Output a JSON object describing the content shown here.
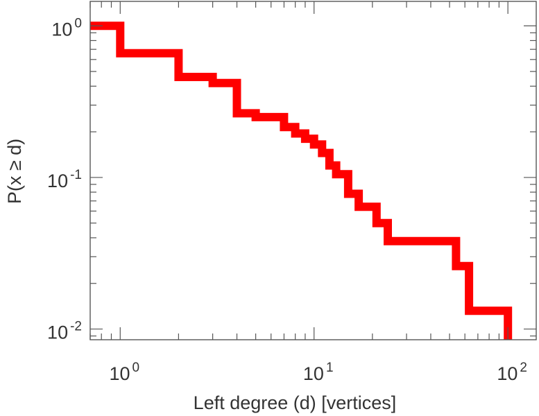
{
  "chart_data": {
    "type": "line",
    "style": "step",
    "xscale": "log",
    "yscale": "log",
    "xlabel": "Left degree (d) [vertices]",
    "ylabel": "P(x ≥ d)",
    "xlim": [
      0.7,
      140
    ],
    "ylim": [
      0.0085,
      1.45
    ],
    "xticks": [
      {
        "value": 1,
        "base": "10",
        "exp": "0"
      },
      {
        "value": 10,
        "base": "10",
        "exp": "1"
      },
      {
        "value": 100,
        "base": "10",
        "exp": "2"
      }
    ],
    "yticks": [
      {
        "value": 1,
        "base": "10",
        "exp": "0"
      },
      {
        "value": 0.1,
        "base": "10",
        "exp": "-1"
      },
      {
        "value": 0.01,
        "base": "10",
        "exp": "-2"
      }
    ],
    "grid": false,
    "legend": "none",
    "series": [
      {
        "color": "#ff0000",
        "points": [
          {
            "x": 0.7,
            "y": 1.0
          },
          {
            "x": 1,
            "y": 1.0
          },
          {
            "x": 1,
            "y": 0.66
          },
          {
            "x": 2,
            "y": 0.66
          },
          {
            "x": 2,
            "y": 0.46
          },
          {
            "x": 3,
            "y": 0.46
          },
          {
            "x": 3,
            "y": 0.42
          },
          {
            "x": 4,
            "y": 0.42
          },
          {
            "x": 4,
            "y": 0.265
          },
          {
            "x": 5,
            "y": 0.265
          },
          {
            "x": 5,
            "y": 0.25
          },
          {
            "x": 7,
            "y": 0.25
          },
          {
            "x": 7,
            "y": 0.215
          },
          {
            "x": 8,
            "y": 0.215
          },
          {
            "x": 8,
            "y": 0.195
          },
          {
            "x": 9,
            "y": 0.195
          },
          {
            "x": 9,
            "y": 0.18
          },
          {
            "x": 10,
            "y": 0.18
          },
          {
            "x": 10,
            "y": 0.165
          },
          {
            "x": 11,
            "y": 0.165
          },
          {
            "x": 11,
            "y": 0.145
          },
          {
            "x": 12,
            "y": 0.145
          },
          {
            "x": 12,
            "y": 0.12
          },
          {
            "x": 13,
            "y": 0.12
          },
          {
            "x": 13,
            "y": 0.105
          },
          {
            "x": 15,
            "y": 0.105
          },
          {
            "x": 15,
            "y": 0.078
          },
          {
            "x": 17,
            "y": 0.078
          },
          {
            "x": 17,
            "y": 0.064
          },
          {
            "x": 21,
            "y": 0.064
          },
          {
            "x": 21,
            "y": 0.05
          },
          {
            "x": 24,
            "y": 0.05
          },
          {
            "x": 24,
            "y": 0.038
          },
          {
            "x": 54,
            "y": 0.038
          },
          {
            "x": 54,
            "y": 0.026
          },
          {
            "x": 63,
            "y": 0.026
          },
          {
            "x": 63,
            "y": 0.0132
          },
          {
            "x": 100,
            "y": 0.0132
          },
          {
            "x": 100,
            "y": 0.0085
          }
        ]
      }
    ]
  }
}
